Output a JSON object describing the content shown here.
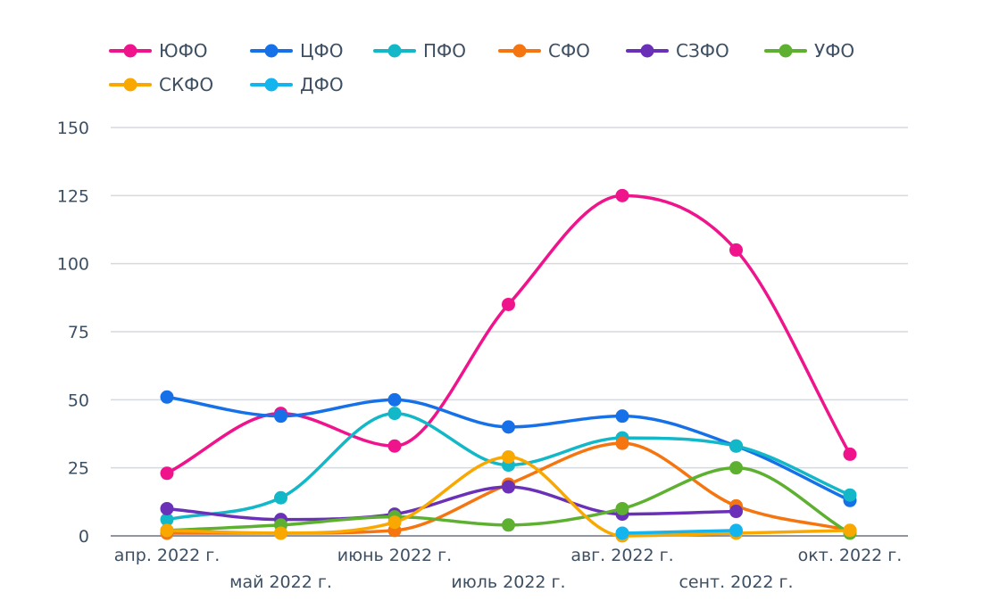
{
  "chart_data": {
    "type": "line",
    "title": "",
    "xlabel": "",
    "ylabel": "",
    "categories": [
      "апр. 2022 г.",
      "май 2022 г.",
      "июнь 2022 г.",
      "июль 2022 г.",
      "авг. 2022 г.",
      "сент. 2022 г.",
      "окт. 2022 г."
    ],
    "ylim": [
      0,
      150
    ],
    "yticks": [
      "0",
      "25",
      "50",
      "75",
      "100",
      "125",
      "150"
    ],
    "grid": true,
    "legend_position": "top-left",
    "series": [
      {
        "name": "ЮФО",
        "color": "#f0148c",
        "values": [
          23,
          45,
          33,
          85,
          125,
          105,
          30
        ]
      },
      {
        "name": "ЦФО",
        "color": "#1670e8",
        "values": [
          51,
          44,
          50,
          40,
          44,
          33,
          13
        ]
      },
      {
        "name": "ПФО",
        "color": "#12b8c8",
        "values": [
          6,
          14,
          45,
          26,
          36,
          33,
          15
        ]
      },
      {
        "name": "СФО",
        "color": "#f57510",
        "values": [
          1,
          1,
          2,
          19,
          34,
          11,
          2
        ]
      },
      {
        "name": "СЗФО",
        "color": "#6a30b8",
        "values": [
          10,
          6,
          8,
          18,
          8,
          9,
          null
        ]
      },
      {
        "name": "УФО",
        "color": "#5db030",
        "values": [
          2,
          4,
          7,
          4,
          10,
          25,
          1
        ]
      },
      {
        "name": "СКФО",
        "color": "#f8a800",
        "values": [
          2,
          1,
          5,
          29,
          0,
          1,
          2
        ]
      },
      {
        "name": "ДФО",
        "color": "#14b4ee",
        "values": [
          null,
          null,
          null,
          null,
          1,
          2,
          null
        ]
      }
    ]
  }
}
